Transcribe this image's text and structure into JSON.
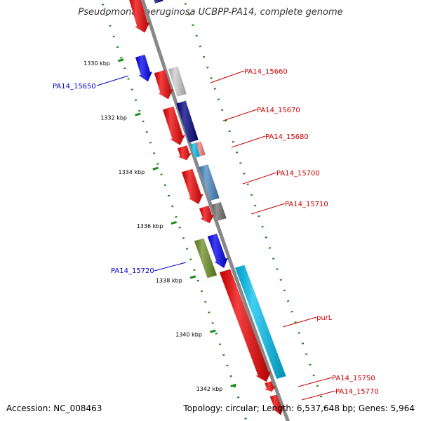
{
  "title": "Pseudomonas aeruginosa UCBPP-PA14, complete genome",
  "footer": {
    "accession": "Accession: NC_008463",
    "stats": "Topology: circular; Length: 6,537,648 bp; Genes: 5,964"
  },
  "colors": {
    "backbone": "#888888",
    "dotted_tracks": "#1a8a1a",
    "forward_label": "#cc0000",
    "reverse_label": "#0000cc",
    "gene_red": "#ee0000",
    "gene_blue": "#0000ee",
    "gene_navy": "#000080",
    "gene_lightgray": "#cccccc",
    "gene_cyan": "#00c0f0",
    "gene_salmon": "#f08080",
    "gene_steelblue": "#4a88c0",
    "gene_gray": "#707070",
    "gene_olive": "#6b8e23"
  },
  "scale": {
    "unit": "kbp",
    "ticks": [
      {
        "label": "1330 kbp",
        "kbp": 1330
      },
      {
        "label": "1332 kbp",
        "kbp": 1332
      },
      {
        "label": "1334 kbp",
        "kbp": 1334
      },
      {
        "label": "1336 kbp",
        "kbp": 1336
      },
      {
        "label": "1338 kbp",
        "kbp": 1338
      },
      {
        "label": "1340 kbp",
        "kbp": 1340
      },
      {
        "label": "1342 kbp",
        "kbp": 1342
      }
    ]
  },
  "gene_labels": [
    {
      "text": "PA14_15650",
      "strand": "reverse"
    },
    {
      "text": "PA14_15660",
      "strand": "forward"
    },
    {
      "text": "PA14_15670",
      "strand": "forward"
    },
    {
      "text": "PA14_15680",
      "strand": "forward"
    },
    {
      "text": "PA14_15700",
      "strand": "forward"
    },
    {
      "text": "PA14_15710",
      "strand": "forward"
    },
    {
      "text": "PA14_15720",
      "strand": "reverse"
    },
    {
      "text": "purL",
      "strand": "forward"
    },
    {
      "text": "PA14_15750",
      "strand": "forward"
    },
    {
      "text": "PA14_15770",
      "strand": "forward"
    }
  ],
  "features": [
    {
      "name": "cds-top-navy",
      "track": "cog_fwd",
      "color": "gene_navy",
      "arrow": false
    },
    {
      "name": "cds-top-red",
      "track": "cds_fwd",
      "color": "gene_red",
      "arrow": true
    },
    {
      "name": "cds-pa14-15650",
      "track": "cds_rev",
      "color": "gene_blue",
      "arrow": true
    },
    {
      "name": "cds-pa14-15660",
      "track": "cds_fwd",
      "color": "gene_red",
      "arrow": true
    },
    {
      "name": "cog-pa14-15660",
      "track": "cog_fwd",
      "color": "gene_lightgray",
      "arrow": false
    },
    {
      "name": "cds-pa14-15670",
      "track": "cds_fwd",
      "color": "gene_red",
      "arrow": true
    },
    {
      "name": "cog-pa14-15670",
      "track": "cog_fwd",
      "color": "gene_navy",
      "arrow": false
    },
    {
      "name": "cds-pa14-15680",
      "track": "cds_fwd",
      "color": "gene_red",
      "arrow": true
    },
    {
      "name": "cog-pa14-15680-a",
      "track": "cog_fwd",
      "color": "gene_cyan",
      "arrow": false
    },
    {
      "name": "cog-pa14-15680-b",
      "track": "cog_fwd",
      "color": "gene_salmon",
      "arrow": false
    },
    {
      "name": "cds-pa14-15700",
      "track": "cds_fwd",
      "color": "gene_red",
      "arrow": true
    },
    {
      "name": "cog-pa14-15700",
      "track": "cog_fwd",
      "color": "gene_steelblue",
      "arrow": false
    },
    {
      "name": "cds-pa14-15710",
      "track": "cds_fwd",
      "color": "gene_red",
      "arrow": true
    },
    {
      "name": "cog-pa14-15710",
      "track": "cog_fwd",
      "color": "gene_gray",
      "arrow": false
    },
    {
      "name": "cog-pa14-15720",
      "track": "cog_rev",
      "color": "gene_olive",
      "arrow": false
    },
    {
      "name": "cds-pa14-15720",
      "track": "cds_rev",
      "color": "gene_blue",
      "arrow": true
    },
    {
      "name": "cds-purl",
      "track": "cds_fwd",
      "color": "gene_red",
      "arrow": true
    },
    {
      "name": "cog-purl",
      "track": "cog_fwd",
      "color": "gene_cyan",
      "arrow": false
    },
    {
      "name": "cds-pa14-15750",
      "track": "cds_fwd",
      "color": "gene_red",
      "arrow": true
    },
    {
      "name": "cds-pa14-15770",
      "track": "cds_fwd",
      "color": "gene_red",
      "arrow": true
    }
  ]
}
